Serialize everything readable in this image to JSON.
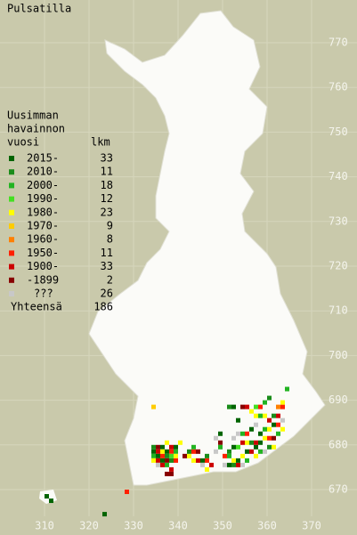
{
  "title": "Pulsatilla",
  "legend": {
    "heading": [
      "Uusimman",
      "havainnon",
      "vuosi"
    ],
    "count_heading": "lkm",
    "rows": [
      {
        "label": "2015-",
        "count": 33,
        "color": "#006400"
      },
      {
        "label": "2010-",
        "count": 11,
        "color": "#1a8c1a"
      },
      {
        "label": "2000-",
        "count": 18,
        "color": "#22b422"
      },
      {
        "label": "1990-",
        "count": 12,
        "color": "#44e022"
      },
      {
        "label": "1980-",
        "count": 23,
        "color": "#ffff00"
      },
      {
        "label": "1970-",
        "count": 9,
        "color": "#ffcc00"
      },
      {
        "label": "1960-",
        "count": 8,
        "color": "#ff8000"
      },
      {
        "label": "1950-",
        "count": 11,
        "color": "#ff2000"
      },
      {
        "label": "1900-",
        "count": 33,
        "color": "#cc0000"
      },
      {
        "label": "-1899",
        "count": 2,
        "color": "#880000"
      },
      {
        "label": "???",
        "count": 26,
        "color": "#c8c8c8"
      }
    ],
    "total_label": "Yhteensä",
    "total": 186
  },
  "xticks": [
    310,
    320,
    330,
    340,
    350,
    360,
    370
  ],
  "yticks": [
    670,
    680,
    690,
    700,
    710,
    720,
    730,
    740,
    750,
    760,
    770
  ],
  "observations": [
    [
      334,
      679,
      1
    ],
    [
      335,
      679,
      9
    ],
    [
      336,
      679,
      0
    ],
    [
      337,
      680,
      4
    ],
    [
      338,
      679,
      8
    ],
    [
      339,
      679,
      0
    ],
    [
      340,
      680,
      4
    ],
    [
      334,
      678,
      0
    ],
    [
      335,
      678,
      8
    ],
    [
      336,
      678,
      4
    ],
    [
      337,
      678,
      0
    ],
    [
      338,
      678,
      7
    ],
    [
      339,
      678,
      2
    ],
    [
      334,
      677,
      2
    ],
    [
      335,
      677,
      0
    ],
    [
      336,
      677,
      7
    ],
    [
      337,
      677,
      1
    ],
    [
      338,
      677,
      3
    ],
    [
      339,
      677,
      4
    ],
    [
      334,
      676,
      4
    ],
    [
      335,
      676,
      8
    ],
    [
      336,
      676,
      0
    ],
    [
      337,
      676,
      9
    ],
    [
      338,
      676,
      1
    ],
    [
      339,
      676,
      7
    ],
    [
      335,
      675,
      10
    ],
    [
      336,
      675,
      8
    ],
    [
      337,
      675,
      2
    ],
    [
      338,
      674,
      8
    ],
    [
      337,
      673,
      9
    ],
    [
      338,
      673,
      9
    ],
    [
      341,
      677,
      9
    ],
    [
      342,
      677,
      4
    ],
    [
      342,
      678,
      1
    ],
    [
      343,
      678,
      7
    ],
    [
      344,
      678,
      9
    ],
    [
      343,
      679,
      2
    ],
    [
      343,
      676,
      4
    ],
    [
      344,
      676,
      8
    ],
    [
      345,
      676,
      0
    ],
    [
      346,
      676,
      7
    ],
    [
      346,
      677,
      1
    ],
    [
      345,
      675,
      10
    ],
    [
      347,
      675,
      8
    ],
    [
      346,
      674,
      4
    ],
    [
      349,
      680,
      9
    ],
    [
      348,
      681,
      10
    ],
    [
      349,
      682,
      0
    ],
    [
      348,
      678,
      10
    ],
    [
      349,
      679,
      2
    ],
    [
      350,
      677,
      7
    ],
    [
      351,
      677,
      2
    ],
    [
      352,
      676,
      4
    ],
    [
      351,
      675,
      0
    ],
    [
      350,
      675,
      10
    ],
    [
      352,
      675,
      1
    ],
    [
      353,
      675,
      8
    ],
    [
      354,
      675,
      10
    ],
    [
      353,
      676,
      0
    ],
    [
      354,
      677,
      4
    ],
    [
      355,
      676,
      2
    ],
    [
      355,
      678,
      0
    ],
    [
      356,
      678,
      8
    ],
    [
      357,
      677,
      4
    ],
    [
      358,
      678,
      2
    ],
    [
      357,
      679,
      0
    ],
    [
      356,
      680,
      1
    ],
    [
      357,
      680,
      8
    ],
    [
      358,
      680,
      0
    ],
    [
      359,
      681,
      4
    ],
    [
      358,
      682,
      0
    ],
    [
      359,
      683,
      2
    ],
    [
      360,
      681,
      7
    ],
    [
      361,
      681,
      9
    ],
    [
      360,
      683,
      4
    ],
    [
      361,
      684,
      0
    ],
    [
      360,
      685,
      8
    ],
    [
      361,
      686,
      1
    ],
    [
      359,
      686,
      4
    ],
    [
      357,
      684,
      10
    ],
    [
      356,
      683,
      0
    ],
    [
      355,
      682,
      7
    ],
    [
      354,
      682,
      2
    ],
    [
      353,
      682,
      10
    ],
    [
      352,
      681,
      10
    ],
    [
      354,
      680,
      8
    ],
    [
      355,
      680,
      4
    ],
    [
      353,
      679,
      3
    ],
    [
      352,
      679,
      0
    ],
    [
      351,
      678,
      1
    ],
    [
      362,
      684,
      7
    ],
    [
      362,
      686,
      8
    ],
    [
      363,
      685,
      10
    ],
    [
      363,
      683,
      4
    ],
    [
      362,
      682,
      2
    ],
    [
      360,
      679,
      1
    ],
    [
      361,
      679,
      4
    ],
    [
      359,
      678,
      10
    ],
    [
      357,
      688,
      3
    ],
    [
      356,
      687,
      4
    ],
    [
      355,
      688,
      8
    ],
    [
      354,
      688,
      9
    ],
    [
      353,
      685,
      0
    ],
    [
      358,
      686,
      2
    ],
    [
      357,
      686,
      4
    ],
    [
      358,
      688,
      7
    ],
    [
      352,
      688,
      0
    ],
    [
      351,
      688,
      1
    ],
    [
      362,
      688,
      6
    ],
    [
      363,
      688,
      7
    ],
    [
      359,
      689,
      2
    ],
    [
      360,
      690,
      1
    ],
    [
      363,
      689,
      4
    ],
    [
      364,
      692,
      2
    ],
    [
      334,
      688,
      5
    ],
    [
      310,
      668,
      0
    ],
    [
      311,
      667,
      0
    ],
    [
      323,
      664,
      0
    ],
    [
      328,
      669,
      7
    ]
  ]
}
